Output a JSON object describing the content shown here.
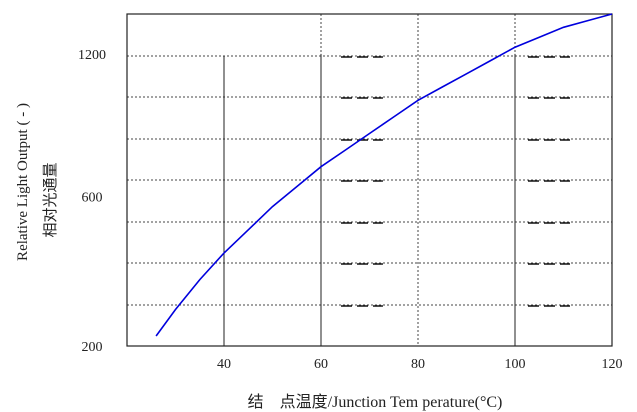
{
  "chart_data": {
    "type": "line",
    "ylabel": "Relative Light Output ( - )",
    "ylabel_cn": "相对光通量",
    "xlabel": "结　点温度/Junction Tem perature(°C)",
    "x_ticks": [
      40,
      60,
      80,
      100,
      120
    ],
    "y_ticks": [
      200,
      600,
      1200
    ],
    "xlim": [
      20,
      120
    ],
    "grid": true,
    "series": [
      {
        "color": "#0000dd",
        "x": [
          26,
          30,
          35,
          40,
          45,
          50,
          55,
          60,
          65,
          70,
          75,
          80,
          85,
          90,
          95,
          100,
          105,
          110,
          115,
          120
        ],
        "y": [
          0.03,
          0.11,
          0.2,
          0.28,
          0.35,
          0.42,
          0.48,
          0.54,
          0.59,
          0.64,
          0.69,
          0.74,
          0.78,
          0.82,
          0.86,
          0.9,
          0.93,
          0.96,
          0.98,
          1.0
        ]
      }
    ]
  }
}
